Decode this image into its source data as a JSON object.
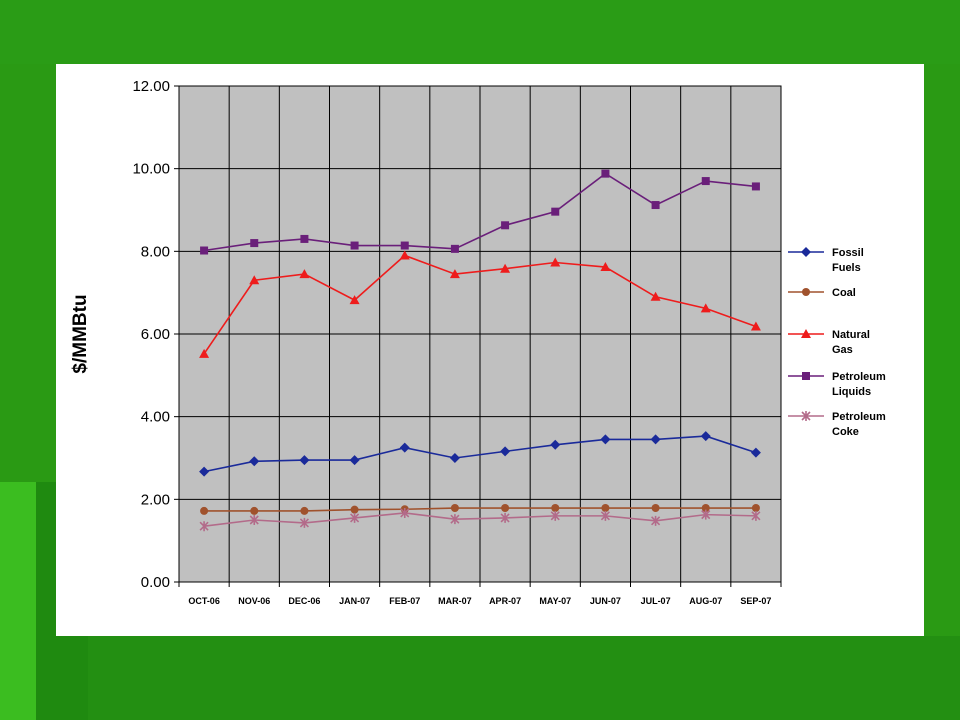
{
  "chart_data": {
    "type": "line",
    "title": "",
    "xlabel": "",
    "ylabel": "$/MMBtu",
    "ylim": [
      0,
      12
    ],
    "yticks": [
      "0.00",
      "2.00",
      "4.00",
      "6.00",
      "8.00",
      "10.00",
      "12.00"
    ],
    "categories": [
      "OCT-06",
      "NOV-06",
      "DEC-06",
      "JAN-07",
      "FEB-07",
      "MAR-07",
      "APR-07",
      "MAY-07",
      "JUN-07",
      "JUL-07",
      "AUG-07",
      "SEP-07"
    ],
    "grid": true,
    "plot_background": "#c0c0c0",
    "legend_position": "right",
    "series": [
      {
        "name": "Fossil Fuels",
        "legend_lines": [
          "Fossil",
          "Fuels"
        ],
        "color": "#1a2a9a",
        "marker": "diamond",
        "values": [
          2.67,
          2.92,
          2.95,
          2.95,
          3.25,
          3.0,
          3.16,
          3.32,
          3.45,
          3.45,
          3.53,
          3.13
        ]
      },
      {
        "name": "Coal",
        "legend_lines": [
          "Coal"
        ],
        "color": "#a0522d",
        "marker": "circle",
        "values": [
          1.72,
          1.72,
          1.72,
          1.75,
          1.76,
          1.79,
          1.79,
          1.79,
          1.79,
          1.79,
          1.79,
          1.79
        ]
      },
      {
        "name": "Natural Gas",
        "legend_lines": [
          "Natural",
          "Gas"
        ],
        "color": "#ee1c1c",
        "marker": "triangle",
        "values": [
          5.52,
          7.3,
          7.45,
          6.82,
          7.9,
          7.45,
          7.58,
          7.73,
          7.62,
          6.9,
          6.62,
          6.18
        ]
      },
      {
        "name": "Petroleum Liquids",
        "legend_lines": [
          "Petroleum",
          "Liquids"
        ],
        "color": "#6a1f7a",
        "marker": "square",
        "values": [
          8.02,
          8.2,
          8.3,
          8.14,
          8.14,
          8.06,
          8.63,
          8.96,
          9.88,
          9.12,
          9.7,
          9.57
        ]
      },
      {
        "name": "Petroleum Coke",
        "legend_lines": [
          "Petroleum",
          "Coke"
        ],
        "color": "#b36b8a",
        "marker": "star",
        "values": [
          1.35,
          1.5,
          1.43,
          1.55,
          1.67,
          1.52,
          1.55,
          1.6,
          1.6,
          1.48,
          1.63,
          1.6
        ]
      }
    ]
  }
}
